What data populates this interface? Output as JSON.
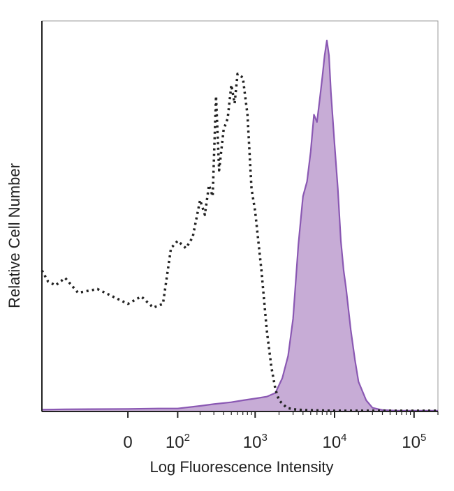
{
  "chart_data": {
    "type": "area",
    "xlabel": "Log Fluorescence Intensity",
    "ylabel": "Relative Cell Number",
    "x_scale": "biexponential",
    "x_ticks": [
      {
        "base": "0",
        "exp": ""
      },
      {
        "base": "10",
        "exp": "2"
      },
      {
        "base": "10",
        "exp": "3"
      },
      {
        "base": "10",
        "exp": "4"
      },
      {
        "base": "10",
        "exp": "5"
      }
    ],
    "x_tick_values": [
      0,
      100,
      1000,
      10000,
      100000
    ],
    "y_range": [
      0,
      100
    ],
    "grid": false,
    "legend": "none",
    "colors": {
      "stained_fill": "#c7acd6",
      "stained_line": "#8a58b3",
      "control_line": "#222222",
      "axis": "#222222",
      "frame": "#999999"
    },
    "series": [
      {
        "style": "filled-solid",
        "x": [
          -300,
          -150,
          0,
          50,
          100,
          200,
          300,
          500,
          700,
          1000,
          1400,
          1800,
          2200,
          2600,
          3000,
          3500,
          4000,
          4500,
          5000,
          5500,
          6000,
          6500,
          7000,
          7500,
          8000,
          8500,
          9000,
          10000,
          11000,
          12000,
          13000,
          14000,
          16000,
          18000,
          20000,
          25000,
          30000,
          40000,
          60000,
          100000,
          200000
        ],
        "y": [
          0.5,
          0.6,
          0.7,
          0.8,
          0.8,
          1.5,
          2.0,
          2.5,
          3.0,
          3.5,
          4.0,
          5.0,
          9,
          15,
          25,
          45,
          58,
          62,
          70,
          80,
          78,
          84,
          90,
          96,
          100,
          96,
          86,
          72,
          60,
          46,
          38,
          33,
          22,
          14,
          8,
          3,
          1.0,
          0.4,
          0.2,
          0.2,
          0.2
        ]
      },
      {
        "style": "dotted",
        "x": [
          -300,
          -250,
          -200,
          -150,
          -100,
          -50,
          0,
          20,
          40,
          60,
          80,
          100,
          130,
          160,
          200,
          230,
          260,
          290,
          320,
          350,
          400,
          450,
          500,
          550,
          600,
          700,
          800,
          900,
          1000,
          1200,
          1400,
          1600,
          1800,
          2000,
          2500,
          3000,
          4000,
          6000,
          10000,
          20000,
          50000,
          100000,
          200000
        ],
        "y": [
          38,
          35,
          34,
          36,
          32,
          33,
          29,
          31,
          28,
          29,
          44,
          46,
          44,
          47,
          57,
          53,
          61,
          58,
          85,
          65,
          76,
          79,
          88,
          83,
          91,
          90,
          80,
          60,
          54,
          38,
          22,
          12,
          6,
          3,
          1.0,
          0.6,
          0.4,
          0.3,
          0.2,
          0.2,
          0.2,
          0.2,
          0.2
        ]
      }
    ]
  }
}
